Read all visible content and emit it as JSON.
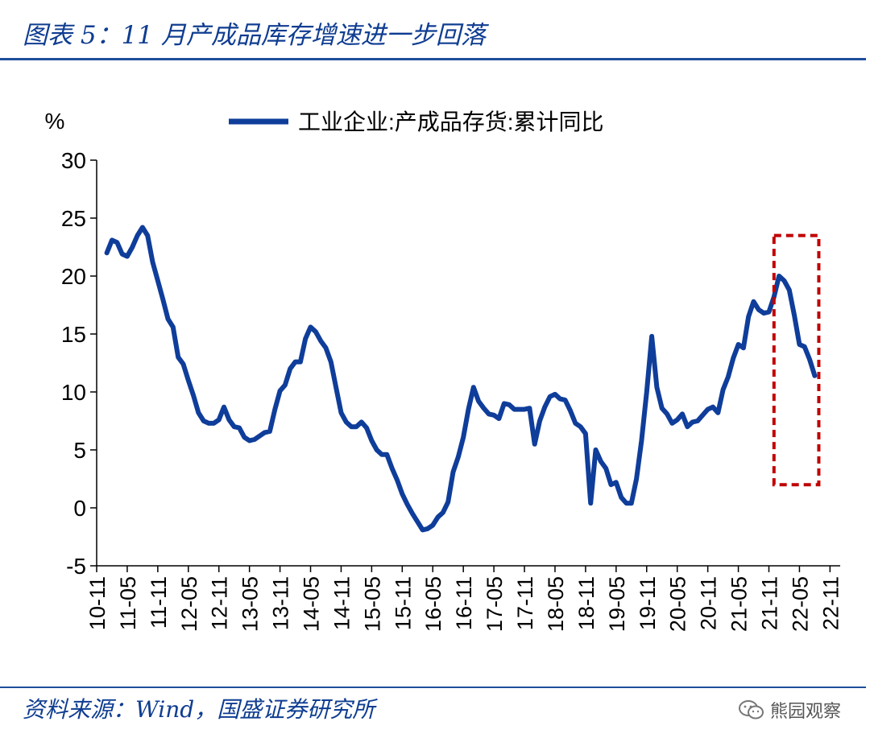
{
  "header": {
    "title": "图表 5：11 月产成品库存增速进一步回落"
  },
  "footer": {
    "source": "资料来源：Wind，国盛证券研究所",
    "watermark": "熊园观察"
  },
  "colors": {
    "line": "#0f3d9a",
    "axis": "#000000",
    "highlight": "#c00000",
    "title": "#0f3d91"
  },
  "chart_data": {
    "type": "line",
    "title": "",
    "ylabel": "%",
    "xlabel": "",
    "ylim": [
      -5,
      30
    ],
    "yticks": [
      -5,
      0,
      5,
      10,
      15,
      20,
      25,
      30
    ],
    "ytick_labels": [
      "-5",
      "0",
      "5",
      "10",
      "15",
      "20",
      "25",
      "30"
    ],
    "xlim": [
      0,
      146
    ],
    "xticks": [
      0,
      6,
      12,
      18,
      24,
      30,
      36,
      42,
      48,
      54,
      60,
      66,
      72,
      78,
      84,
      90,
      96,
      102,
      108,
      114,
      120,
      126,
      132,
      138,
      144
    ],
    "xtick_labels": [
      "10-11",
      "11-05",
      "11-11",
      "12-05",
      "12-11",
      "13-05",
      "13-11",
      "14-05",
      "14-11",
      "15-05",
      "15-11",
      "16-05",
      "16-11",
      "17-05",
      "17-11",
      "18-05",
      "18-11",
      "19-05",
      "19-11",
      "20-05",
      "20-11",
      "21-05",
      "21-11",
      "22-05",
      "22-11"
    ],
    "legend_position": "top-center",
    "series": [
      {
        "name": "工业企业:产成品存货:累计同比",
        "points": [
          [
            2,
            22.0
          ],
          [
            3,
            23.1
          ],
          [
            4,
            22.9
          ],
          [
            5,
            21.9
          ],
          [
            6,
            21.7
          ],
          [
            7,
            22.5
          ],
          [
            8,
            23.5
          ],
          [
            9,
            24.2
          ],
          [
            10,
            23.5
          ],
          [
            11,
            21.2
          ],
          [
            12,
            19.6
          ],
          [
            13,
            18.0
          ],
          [
            14,
            16.3
          ],
          [
            15,
            15.6
          ],
          [
            16,
            13.0
          ],
          [
            17,
            12.4
          ],
          [
            18,
            11.0
          ],
          [
            19,
            9.7
          ],
          [
            20,
            8.2
          ],
          [
            21,
            7.5
          ],
          [
            22,
            7.3
          ],
          [
            23,
            7.3
          ],
          [
            24,
            7.6
          ],
          [
            25,
            8.7
          ],
          [
            26,
            7.6
          ],
          [
            27,
            7.0
          ],
          [
            28,
            6.9
          ],
          [
            29,
            6.1
          ],
          [
            30,
            5.8
          ],
          [
            31,
            5.9
          ],
          [
            32,
            6.2
          ],
          [
            33,
            6.5
          ],
          [
            34,
            6.6
          ],
          [
            35,
            8.5
          ],
          [
            36,
            10.1
          ],
          [
            37,
            10.6
          ],
          [
            38,
            12.0
          ],
          [
            39,
            12.6
          ],
          [
            40,
            12.6
          ],
          [
            41,
            14.6
          ],
          [
            42,
            15.6
          ],
          [
            43,
            15.2
          ],
          [
            44,
            14.4
          ],
          [
            45,
            13.8
          ],
          [
            46,
            12.6
          ],
          [
            47,
            10.4
          ],
          [
            48,
            8.2
          ],
          [
            49,
            7.4
          ],
          [
            50,
            7.0
          ],
          [
            51,
            7.0
          ],
          [
            52,
            7.4
          ],
          [
            53,
            6.9
          ],
          [
            54,
            5.8
          ],
          [
            55,
            5.0
          ],
          [
            56,
            4.6
          ],
          [
            57,
            4.6
          ],
          [
            58,
            3.4
          ],
          [
            59,
            2.4
          ],
          [
            60,
            1.2
          ],
          [
            61,
            0.3
          ],
          [
            62,
            -0.5
          ],
          [
            63,
            -1.2
          ],
          [
            64,
            -1.9
          ],
          [
            65,
            -1.8
          ],
          [
            66,
            -1.5
          ],
          [
            67,
            -0.8
          ],
          [
            68,
            -0.4
          ],
          [
            69,
            0.5
          ],
          [
            70,
            3.1
          ],
          [
            71,
            4.4
          ],
          [
            72,
            6.1
          ],
          [
            73,
            8.5
          ],
          [
            74,
            10.4
          ],
          [
            75,
            9.2
          ],
          [
            76,
            8.6
          ],
          [
            77,
            8.1
          ],
          [
            78,
            8.0
          ],
          [
            79,
            7.7
          ],
          [
            80,
            9.0
          ],
          [
            81,
            8.9
          ],
          [
            82,
            8.5
          ],
          [
            83,
            8.5
          ],
          [
            84,
            8.5
          ],
          [
            85,
            8.6
          ],
          [
            86,
            5.5
          ],
          [
            87,
            7.5
          ],
          [
            88,
            8.7
          ],
          [
            89,
            9.6
          ],
          [
            90,
            9.8
          ],
          [
            91,
            9.4
          ],
          [
            92,
            9.3
          ],
          [
            93,
            8.4
          ],
          [
            94,
            7.3
          ],
          [
            95,
            7.0
          ],
          [
            96,
            6.4
          ],
          [
            97,
            0.4
          ],
          [
            98,
            5.0
          ],
          [
            99,
            4.0
          ],
          [
            100,
            3.4
          ],
          [
            101,
            2.0
          ],
          [
            102,
            2.2
          ],
          [
            103,
            0.9
          ],
          [
            104,
            0.4
          ],
          [
            105,
            0.4
          ],
          [
            106,
            2.5
          ],
          [
            107,
            5.8
          ],
          [
            108,
            10.0
          ],
          [
            109,
            14.8
          ],
          [
            110,
            10.4
          ],
          [
            111,
            8.6
          ],
          [
            112,
            8.1
          ],
          [
            113,
            7.3
          ],
          [
            114,
            7.6
          ],
          [
            115,
            8.1
          ],
          [
            116,
            7.0
          ],
          [
            117,
            7.4
          ],
          [
            118,
            7.5
          ],
          [
            119,
            8.0
          ],
          [
            120,
            8.5
          ],
          [
            121,
            8.7
          ],
          [
            122,
            8.2
          ],
          [
            123,
            10.2
          ],
          [
            124,
            11.3
          ],
          [
            125,
            12.9
          ],
          [
            126,
            14.1
          ],
          [
            127,
            13.8
          ],
          [
            128,
            16.5
          ],
          [
            129,
            17.8
          ],
          [
            130,
            17.1
          ],
          [
            131,
            16.8
          ],
          [
            132,
            16.9
          ],
          [
            133,
            18.2
          ],
          [
            134,
            20.0
          ],
          [
            135,
            19.6
          ],
          [
            136,
            18.8
          ],
          [
            137,
            16.6
          ],
          [
            138,
            14.1
          ],
          [
            139,
            13.9
          ],
          [
            140,
            12.8
          ],
          [
            141,
            11.4
          ]
        ]
      }
    ],
    "annotations": [
      {
        "type": "dashed-rectangle",
        "x_range": [
          133,
          141.8
        ],
        "y_range": [
          2.0,
          23.5
        ]
      }
    ]
  }
}
